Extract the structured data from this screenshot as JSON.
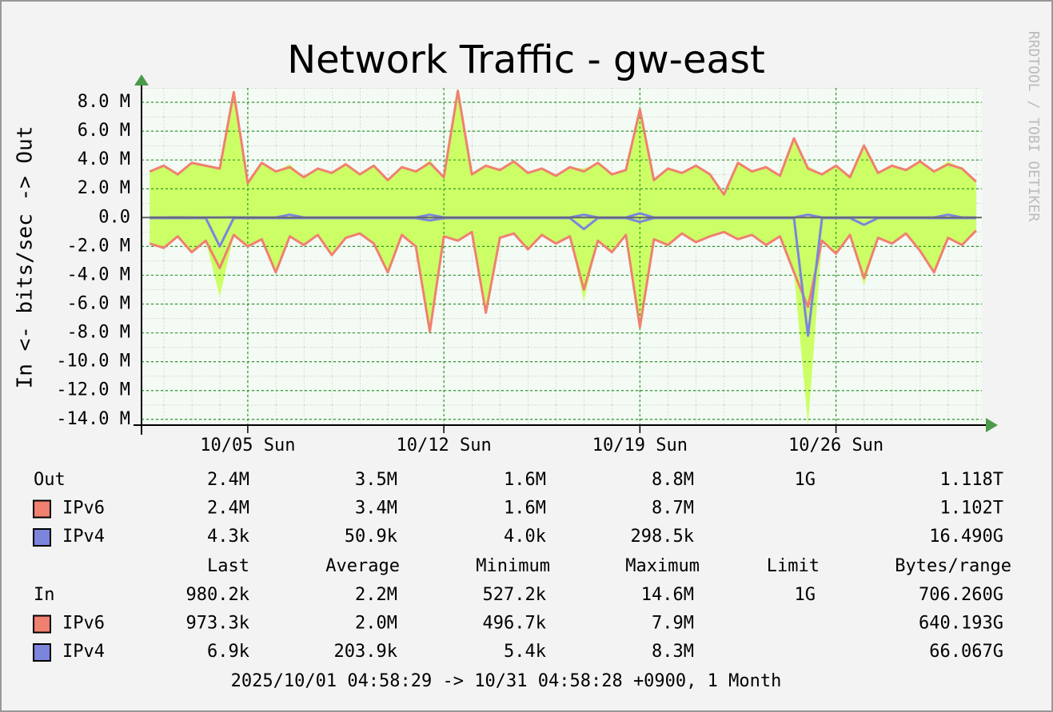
{
  "chart_data": {
    "type": "rrd-traffic",
    "title": "Network Traffic - gw-east",
    "y_label": "In <- bits/sec -> Out",
    "watermark": "RRDTOOL / TOBI OETIKER",
    "period": "2025/10/01 04:58:29 -> 10/31 04:58:28 +0900, 1 Month",
    "area_color": "#ccff66",
    "grid": true,
    "xlim": [
      1.207,
      31.207
    ],
    "xticks": [
      {
        "value": 5,
        "label": "10/05 Sun"
      },
      {
        "value": 12,
        "label": "10/12 Sun"
      },
      {
        "value": 19,
        "label": "10/19 Sun"
      },
      {
        "value": 26,
        "label": "10/26 Sun"
      }
    ],
    "ylim": [
      -14400000,
      9000000
    ],
    "yticks": [
      {
        "value": 8000000,
        "label": "8.0 M"
      },
      {
        "value": 6000000,
        "label": "6.0 M"
      },
      {
        "value": 4000000,
        "label": "4.0 M"
      },
      {
        "value": 2000000,
        "label": "2.0 M"
      },
      {
        "value": 0,
        "label": "0.0"
      },
      {
        "value": -2000000,
        "label": "-2.0 M"
      },
      {
        "value": -4000000,
        "label": "-4.0 M"
      },
      {
        "value": -6000000,
        "label": "-6.0 M"
      },
      {
        "value": -8000000,
        "label": "-8.0 M"
      },
      {
        "value": -10000000,
        "label": "-10.0 M"
      },
      {
        "value": -12000000,
        "label": "-12.0 M"
      },
      {
        "value": -14000000,
        "label": "-14.0 M"
      }
    ],
    "x": [
      1.5,
      2.0,
      2.5,
      3.0,
      3.5,
      4.0,
      4.5,
      5.0,
      5.5,
      6.0,
      6.5,
      7.0,
      7.5,
      8.0,
      8.5,
      9.0,
      9.5,
      10.0,
      10.5,
      11.0,
      11.5,
      12.0,
      12.5,
      13.0,
      13.5,
      14.0,
      14.5,
      15.0,
      15.5,
      16.0,
      16.5,
      17.0,
      17.5,
      18.0,
      18.5,
      19.0,
      19.5,
      20.0,
      20.5,
      21.0,
      21.5,
      22.0,
      22.5,
      23.0,
      23.5,
      24.0,
      24.5,
      25.0,
      25.5,
      26.0,
      26.5,
      27.0,
      27.5,
      28.0,
      28.5,
      29.0,
      29.5,
      30.0,
      30.5,
      31.0
    ],
    "stats_header": [
      "Last",
      "Average",
      "Minimum",
      "Maximum",
      "Limit",
      "Bytes/range"
    ],
    "groups": [
      {
        "name": "Out",
        "stats": [
          "2.4M",
          "3.5M",
          "1.6M",
          "8.8M",
          "1G",
          "1.118T"
        ],
        "series": [
          {
            "name": "IPv6",
            "color": "#f08070",
            "stats": [
              "2.4M",
              "3.4M",
              "1.6M",
              "8.7M",
              null,
              "1.102T"
            ],
            "values": [
              3200000.0,
              3600000.0,
              3000000.0,
              3800000.0,
              3600000.0,
              3400000.0,
              8700000.0,
              2400000.0,
              3800000.0,
              3200000.0,
              3500000.0,
              2800000.0,
              3400000.0,
              3100000.0,
              3700000.0,
              3000000.0,
              3600000.0,
              2600000.0,
              3500000.0,
              3200000.0,
              3800000.0,
              2800000.0,
              8800000.0,
              3000000.0,
              3600000.0,
              3300000.0,
              3900000.0,
              3100000.0,
              3400000.0,
              2900000.0,
              3500000.0,
              3200000.0,
              3800000.0,
              3000000.0,
              3300000.0,
              7500000.0,
              2600000.0,
              3400000.0,
              3100000.0,
              3600000.0,
              3000000.0,
              1600000.0,
              3800000.0,
              3200000.0,
              3500000.0,
              2900000.0,
              5500000.0,
              3400000.0,
              3000000.0,
              3600000.0,
              2800000.0,
              5000000.0,
              3100000.0,
              3600000.0,
              3300000.0,
              3900000.0,
              3200000.0,
              3700000.0,
              3400000.0,
              2500000.0
            ]
          },
          {
            "name": "IPv4",
            "color": "#7b85dc",
            "stats": [
              "4.3k",
              "50.9k",
              "4.0k",
              "298.5k",
              null,
              "16.490G"
            ],
            "values": [
              10000.0,
              10000.0,
              20000.0,
              10000.0,
              10000.0,
              10000.0,
              20000.0,
              10000.0,
              10000.0,
              10000.0,
              200000.0,
              10000.0,
              10000.0,
              10000.0,
              10000.0,
              10000.0,
              10000.0,
              10000.0,
              10000.0,
              10000.0,
              200000.0,
              10000.0,
              10000.0,
              10000.0,
              10000.0,
              10000.0,
              10000.0,
              10000.0,
              10000.0,
              10000.0,
              10000.0,
              200000.0,
              10000.0,
              10000.0,
              10000.0,
              300000.0,
              10000.0,
              10000.0,
              10000.0,
              10000.0,
              10000.0,
              10000.0,
              10000.0,
              10000.0,
              10000.0,
              10000.0,
              10000.0,
              200000.0,
              10000.0,
              10000.0,
              10000.0,
              10000.0,
              10000.0,
              10000.0,
              10000.0,
              10000.0,
              10000.0,
              200000.0,
              10000.0,
              10000.0
            ]
          }
        ]
      },
      {
        "name": "In",
        "stats": [
          "980.2k",
          "2.2M",
          "527.2k",
          "14.6M",
          "1G",
          "706.260G"
        ],
        "series": [
          {
            "name": "IPv6",
            "color": "#f08070",
            "stats": [
              "973.3k",
              "2.0M",
              "496.7k",
              "7.9M",
              null,
              "640.193G"
            ],
            "values": [
              -1800000.0,
              -2100000.0,
              -1300000.0,
              -2400000.0,
              -1600000.0,
              -3500000.0,
              -1200000.0,
              -2000000.0,
              -1500000.0,
              -3800000.0,
              -1300000.0,
              -1900000.0,
              -1200000.0,
              -2600000.0,
              -1400000.0,
              -1100000.0,
              -1800000.0,
              -3800000.0,
              -1200000.0,
              -2000000.0,
              -7900000.0,
              -1300000.0,
              -1600000.0,
              -1000000.0,
              -6600000.0,
              -1400000.0,
              -1100000.0,
              -2200000.0,
              -1200000.0,
              -1800000.0,
              -1300000.0,
              -5000000.0,
              -1600000.0,
              -2400000.0,
              -1200000.0,
              -7600000.0,
              -1500000.0,
              -1900000.0,
              -1100000.0,
              -1700000.0,
              -1300000.0,
              -1000000.0,
              -1500000.0,
              -1200000.0,
              -1900000.0,
              -1300000.0,
              -3800000.0,
              -6200000.0,
              -1600000.0,
              -2500000.0,
              -1200000.0,
              -4200000.0,
              -1400000.0,
              -1800000.0,
              -1100000.0,
              -2300000.0,
              -3800000.0,
              -1400000.0,
              -1900000.0,
              -900000.0
            ]
          },
          {
            "name": "IPv4",
            "color": "#7b85dc",
            "stats": [
              "6.9k",
              "203.9k",
              "5.4k",
              "8.3M",
              null,
              "66.067G"
            ],
            "values": [
              -30000.0,
              -30000.0,
              -30000.0,
              -30000.0,
              -30000.0,
              -2000000.0,
              -30000.0,
              -30000.0,
              -30000.0,
              -30000.0,
              -30000.0,
              -30000.0,
              -30000.0,
              -30000.0,
              -30000.0,
              -30000.0,
              -30000.0,
              -30000.0,
              -30000.0,
              -30000.0,
              -200000.0,
              -30000.0,
              -30000.0,
              -30000.0,
              -30000.0,
              -30000.0,
              -30000.0,
              -30000.0,
              -30000.0,
              -30000.0,
              -30000.0,
              -800000.0,
              -30000.0,
              -30000.0,
              -30000.0,
              -300000.0,
              -30000.0,
              -30000.0,
              -30000.0,
              -30000.0,
              -30000.0,
              -30000.0,
              -30000.0,
              -30000.0,
              -30000.0,
              -30000.0,
              -30000.0,
              -8200000.0,
              -30000.0,
              -30000.0,
              -30000.0,
              -500000.0,
              -30000.0,
              -30000.0,
              -30000.0,
              -30000.0,
              -30000.0,
              -30000.0,
              -30000.0,
              -30000.0
            ]
          }
        ]
      }
    ]
  }
}
